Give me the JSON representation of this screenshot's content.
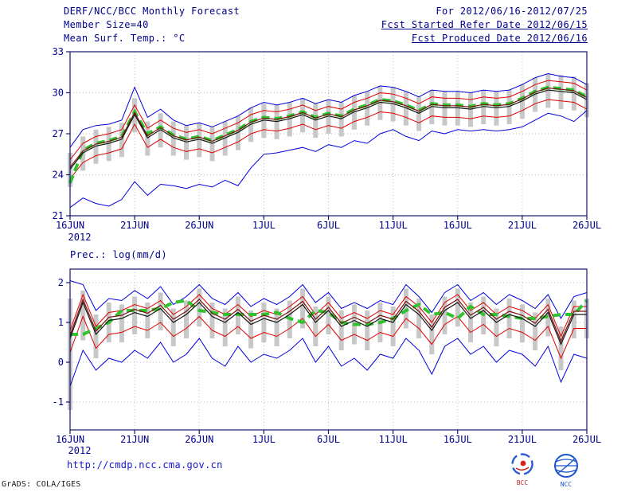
{
  "header": {
    "title": "DERF/NCC/BCC Monthly Forecast",
    "member_size": "Member Size=40",
    "for_range": "For 2012/06/16-2012/07/25",
    "fcst_start": "Fcst Started Refer Date 2012/06/15",
    "fcst_produced": "Fcst Produced Date 2012/06/16"
  },
  "footer": {
    "url": "http://cmdp.ncc.cma.gov.cn",
    "credit": "GrADS: COLA/IGES",
    "logo1": "BCC",
    "logo2": "NCC"
  },
  "colors": {
    "text": "#00008b",
    "envelope": "#0000dd",
    "quartile": "#e00000",
    "control": "#7a1010",
    "mean": "#151515",
    "highlight": "#2fc32f",
    "spread_bar": "#c8c8c8",
    "url": "#1414d0"
  },
  "chart_data": [
    {
      "type": "line",
      "title": "Mean Surf. Temp.: °C",
      "x_ticks": [
        "16JUN",
        "21JUN",
        "26JUN",
        "1JUL",
        "6JUL",
        "11JUL",
        "16JUL",
        "21JUL",
        "26JUL"
      ],
      "x_tick_days": [
        0,
        5,
        10,
        15,
        20,
        25,
        30,
        35,
        40
      ],
      "x_range_days": [
        0,
        40
      ],
      "x_year": "2012",
      "ylim": [
        21,
        33
      ],
      "y_ticks": [
        21,
        24,
        27,
        30,
        33
      ],
      "grid": "dotted",
      "legend": "none",
      "bars": {
        "name": "ensemble-spread-bar",
        "color": "#c8c8c8",
        "low": [
          23.1,
          24.3,
          24.8,
          25.0,
          25.3,
          27.1,
          25.4,
          26.0,
          25.4,
          25.1,
          25.3,
          25.0,
          25.4,
          25.8,
          26.4,
          26.7,
          26.6,
          26.8,
          27.1,
          26.7,
          27.0,
          26.8,
          27.3,
          27.6,
          28.0,
          27.9,
          27.6,
          27.2,
          27.7,
          27.6,
          27.6,
          27.5,
          27.7,
          27.6,
          27.7,
          28.1,
          28.6,
          28.9,
          28.8,
          28.7,
          28.2
        ],
        "high": [
          25.6,
          26.8,
          27.3,
          27.5,
          27.8,
          29.6,
          27.9,
          28.5,
          27.9,
          27.6,
          27.8,
          27.5,
          27.9,
          28.3,
          28.9,
          29.2,
          29.1,
          29.3,
          29.6,
          29.2,
          29.5,
          29.3,
          29.8,
          30.1,
          30.5,
          30.4,
          30.1,
          29.7,
          30.2,
          30.1,
          30.1,
          30.0,
          30.2,
          30.1,
          30.2,
          30.6,
          31.1,
          31.4,
          31.3,
          31.2,
          30.7
        ]
      },
      "series": [
        {
          "name": "ensemble-max",
          "color": "#0000dd",
          "width": 1,
          "values": [
            26.0,
            27.3,
            27.6,
            27.7,
            28.0,
            30.4,
            28.2,
            28.8,
            28.0,
            27.6,
            27.8,
            27.5,
            27.9,
            28.3,
            28.9,
            29.3,
            29.1,
            29.3,
            29.6,
            29.2,
            29.5,
            29.3,
            29.8,
            30.1,
            30.5,
            30.4,
            30.1,
            29.7,
            30.2,
            30.1,
            30.1,
            30.0,
            30.2,
            30.1,
            30.2,
            30.6,
            31.1,
            31.4,
            31.2,
            31.1,
            30.6
          ]
        },
        {
          "name": "ensemble-min",
          "color": "#0000dd",
          "width": 1,
          "values": [
            21.6,
            22.3,
            21.9,
            21.7,
            22.2,
            23.5,
            22.5,
            23.3,
            23.2,
            23.0,
            23.3,
            23.1,
            23.6,
            23.2,
            24.5,
            25.5,
            25.6,
            25.8,
            26.0,
            25.7,
            26.2,
            26.0,
            26.5,
            26.3,
            27.0,
            27.3,
            26.8,
            26.5,
            27.2,
            27.0,
            27.3,
            27.2,
            27.3,
            27.2,
            27.3,
            27.5,
            28.0,
            28.5,
            28.3,
            27.9,
            28.7
          ]
        },
        {
          "name": "upper-quartile",
          "color": "#e00000",
          "width": 1,
          "values": [
            25.1,
            26.3,
            26.8,
            27.0,
            27.3,
            29.1,
            27.4,
            28.0,
            27.4,
            27.1,
            27.3,
            27.0,
            27.4,
            27.8,
            28.4,
            28.7,
            28.6,
            28.8,
            29.1,
            28.7,
            29.0,
            28.8,
            29.3,
            29.6,
            30.0,
            29.9,
            29.6,
            29.2,
            29.7,
            29.6,
            29.6,
            29.5,
            29.7,
            29.6,
            29.7,
            30.1,
            30.6,
            30.9,
            30.8,
            30.7,
            30.2
          ]
        },
        {
          "name": "lower-quartile",
          "color": "#e00000",
          "width": 1,
          "values": [
            23.7,
            24.9,
            25.4,
            25.6,
            25.9,
            27.7,
            26.0,
            26.6,
            26.0,
            25.7,
            25.9,
            25.6,
            26.0,
            26.4,
            27.0,
            27.3,
            27.2,
            27.4,
            27.7,
            27.3,
            27.6,
            27.4,
            27.9,
            28.2,
            28.6,
            28.5,
            28.2,
            27.8,
            28.3,
            28.2,
            28.2,
            28.1,
            28.3,
            28.2,
            28.3,
            28.7,
            29.2,
            29.5,
            29.4,
            29.3,
            28.8
          ]
        },
        {
          "name": "highlight-dashed",
          "color": "#2fc32f",
          "width": 4,
          "dash": "10 6",
          "values": [
            23.4,
            25.8,
            26.3,
            26.5,
            26.8,
            28.6,
            27.0,
            27.5,
            26.9,
            26.6,
            26.8,
            26.5,
            26.9,
            27.3,
            27.9,
            28.2,
            28.1,
            28.3,
            28.6,
            28.2,
            28.5,
            28.3,
            28.8,
            29.1,
            29.5,
            29.4,
            29.1,
            28.7,
            29.2,
            29.1,
            29.1,
            29.0,
            29.2,
            29.1,
            29.2,
            29.6,
            30.1,
            30.4,
            30.3,
            30.2,
            29.7
          ]
        },
        {
          "name": "control-run",
          "color": "#7a1010",
          "width": 1.2,
          "values": [
            24.55,
            25.75,
            26.25,
            26.45,
            26.75,
            28.55,
            26.85,
            27.45,
            26.85,
            26.55,
            26.75,
            26.45,
            26.85,
            27.25,
            27.85,
            28.15,
            28.05,
            28.25,
            28.55,
            28.15,
            28.45,
            28.25,
            28.75,
            29.05,
            29.45,
            29.35,
            29.05,
            28.65,
            29.15,
            29.05,
            29.05,
            28.95,
            29.15,
            29.05,
            29.15,
            29.55,
            30.05,
            30.35,
            30.25,
            30.15,
            29.65
          ]
        },
        {
          "name": "ensemble-mean",
          "color": "#151515",
          "width": 1.2,
          "values": [
            24.4,
            25.6,
            26.1,
            26.3,
            26.6,
            28.4,
            26.7,
            27.3,
            26.7,
            26.4,
            26.6,
            26.3,
            26.7,
            27.1,
            27.7,
            28.0,
            27.9,
            28.1,
            28.4,
            28.0,
            28.3,
            28.1,
            28.6,
            28.9,
            29.3,
            29.2,
            28.9,
            28.5,
            29.0,
            28.9,
            28.9,
            28.8,
            29.0,
            28.9,
            29.0,
            29.4,
            29.9,
            30.2,
            30.1,
            30.0,
            29.5
          ]
        }
      ]
    },
    {
      "type": "line",
      "title": "Prec.: log(mm/d)",
      "x_ticks": [
        "16JUN",
        "21JUN",
        "26JUN",
        "1JUL",
        "6JUL",
        "11JUL",
        "16JUL",
        "21JUL",
        "26JUL"
      ],
      "x_tick_days": [
        0,
        5,
        10,
        15,
        20,
        25,
        30,
        35,
        40
      ],
      "x_range_days": [
        0,
        40
      ],
      "x_year": "2012",
      "ylim": [
        -1.7,
        2.34
      ],
      "y_ticks": [
        -1,
        0,
        1,
        2
      ],
      "grid": "dotted",
      "legend": "none",
      "bars": {
        "name": "ensemble-spread-bar",
        "color": "#c8c8c8",
        "low": [
          -1.2,
          0.55,
          0.1,
          0.5,
          0.5,
          0.7,
          0.6,
          0.8,
          0.4,
          0.6,
          0.9,
          0.6,
          0.4,
          0.7,
          0.35,
          0.5,
          0.4,
          0.6,
          0.85,
          0.4,
          0.7,
          0.3,
          0.45,
          0.3,
          0.5,
          0.4,
          0.85,
          0.6,
          0.2,
          0.7,
          0.9,
          0.5,
          0.7,
          0.4,
          0.6,
          0.5,
          0.3,
          0.65,
          -0.2,
          0.6,
          0.6
        ],
        "high": [
          1.6,
          1.8,
          1.2,
          1.5,
          1.45,
          1.65,
          1.5,
          1.75,
          1.35,
          1.55,
          1.85,
          1.5,
          1.35,
          1.65,
          1.3,
          1.5,
          1.35,
          1.55,
          1.85,
          1.4,
          1.65,
          1.3,
          1.45,
          1.3,
          1.5,
          1.4,
          1.85,
          1.6,
          1.2,
          1.65,
          1.85,
          1.5,
          1.65,
          1.35,
          1.6,
          1.45,
          1.25,
          1.6,
          0.9,
          1.55,
          1.6
        ]
      },
      "series": [
        {
          "name": "ensemble-max",
          "color": "#0000dd",
          "width": 1,
          "values": [
            2.05,
            1.95,
            1.3,
            1.6,
            1.55,
            1.8,
            1.6,
            1.9,
            1.45,
            1.65,
            1.95,
            1.6,
            1.45,
            1.75,
            1.4,
            1.6,
            1.45,
            1.65,
            1.95,
            1.5,
            1.75,
            1.35,
            1.5,
            1.35,
            1.55,
            1.45,
            1.95,
            1.65,
            1.25,
            1.75,
            1.95,
            1.55,
            1.75,
            1.45,
            1.7,
            1.55,
            1.35,
            1.7,
            1.1,
            1.65,
            1.75
          ]
        },
        {
          "name": "ensemble-min",
          "color": "#0000dd",
          "width": 1,
          "values": [
            -0.6,
            0.3,
            -0.2,
            0.1,
            0.0,
            0.3,
            0.1,
            0.5,
            0.0,
            0.2,
            0.6,
            0.1,
            -0.1,
            0.4,
            0.0,
            0.2,
            0.1,
            0.3,
            0.6,
            0.0,
            0.4,
            -0.1,
            0.1,
            -0.2,
            0.2,
            0.1,
            0.6,
            0.3,
            -0.3,
            0.4,
            0.6,
            0.2,
            0.4,
            0.0,
            0.3,
            0.2,
            -0.1,
            0.4,
            -0.5,
            0.2,
            0.1
          ]
        },
        {
          "name": "upper-quartile",
          "color": "#e00000",
          "width": 1,
          "values": [
            0.8,
            1.7,
            0.9,
            1.25,
            1.3,
            1.45,
            1.35,
            1.55,
            1.2,
            1.4,
            1.7,
            1.35,
            1.2,
            1.45,
            1.15,
            1.3,
            1.2,
            1.4,
            1.65,
            1.2,
            1.5,
            1.1,
            1.25,
            1.1,
            1.3,
            1.2,
            1.65,
            1.4,
            1.0,
            1.5,
            1.7,
            1.3,
            1.5,
            1.2,
            1.4,
            1.3,
            1.1,
            1.45,
            0.65,
            1.4,
            1.4
          ]
        },
        {
          "name": "lower-quartile",
          "color": "#e00000",
          "width": 1,
          "values": [
            0.25,
            1.15,
            0.35,
            0.7,
            0.75,
            0.9,
            0.8,
            1.0,
            0.65,
            0.85,
            1.15,
            0.8,
            0.65,
            0.9,
            0.6,
            0.75,
            0.65,
            0.85,
            1.1,
            0.65,
            0.95,
            0.55,
            0.7,
            0.55,
            0.75,
            0.65,
            1.1,
            0.85,
            0.45,
            0.95,
            1.15,
            0.75,
            0.95,
            0.65,
            0.85,
            0.75,
            0.55,
            0.9,
            0.1,
            0.85,
            0.85
          ]
        },
        {
          "name": "highlight-dashed",
          "color": "#2fc32f",
          "width": 4,
          "dash": "10 6",
          "values": [
            0.7,
            0.7,
            0.85,
            1.0,
            1.3,
            1.3,
            1.3,
            1.35,
            1.5,
            1.55,
            1.3,
            1.25,
            1.2,
            1.2,
            1.2,
            1.2,
            1.25,
            1.1,
            1.0,
            1.3,
            1.25,
            1.0,
            0.95,
            0.95,
            1.0,
            1.1,
            1.3,
            1.45,
            1.2,
            1.25,
            1.1,
            1.4,
            1.2,
            1.2,
            1.15,
            1.1,
            1.1,
            1.15,
            1.2,
            1.2,
            1.55
          ]
        },
        {
          "name": "control-run",
          "color": "#7a1010",
          "width": 1.2,
          "values": [
            0.68,
            1.58,
            0.78,
            1.13,
            1.18,
            1.33,
            1.23,
            1.43,
            1.08,
            1.28,
            1.58,
            1.23,
            1.08,
            1.33,
            1.03,
            1.18,
            1.08,
            1.28,
            1.53,
            1.08,
            1.38,
            0.98,
            1.13,
            0.98,
            1.18,
            1.08,
            1.53,
            1.28,
            0.88,
            1.38,
            1.58,
            1.18,
            1.38,
            1.08,
            1.28,
            1.18,
            0.98,
            1.33,
            0.53,
            1.28,
            1.28
          ]
        },
        {
          "name": "ensemble-mean",
          "color": "#151515",
          "width": 1.2,
          "values": [
            0.6,
            1.5,
            0.7,
            1.05,
            1.1,
            1.25,
            1.15,
            1.35,
            1.0,
            1.2,
            1.5,
            1.15,
            1.0,
            1.25,
            0.95,
            1.1,
            1.0,
            1.2,
            1.45,
            1.0,
            1.3,
            0.9,
            1.05,
            0.9,
            1.1,
            1.0,
            1.45,
            1.2,
            0.8,
            1.3,
            1.5,
            1.1,
            1.3,
            1.0,
            1.2,
            1.1,
            0.9,
            1.25,
            0.45,
            1.2,
            1.2
          ]
        }
      ]
    }
  ]
}
